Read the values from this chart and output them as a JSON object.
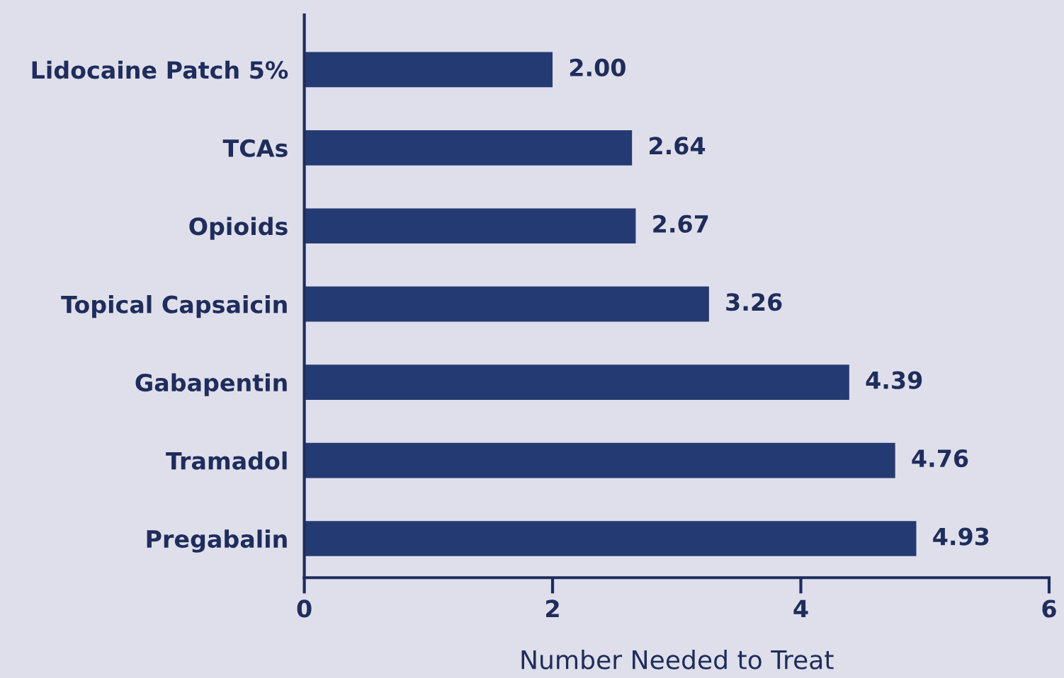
{
  "chart_data": {
    "type": "bar",
    "orientation": "horizontal",
    "xlabel": "Number Needed to Treat",
    "categories": [
      "Lidocaine Patch 5%",
      "TCAs",
      "Opioids",
      "Topical Capsaicin",
      "Gabapentin",
      "Tramadol",
      "Pregabalin"
    ],
    "values": [
      2.0,
      2.64,
      2.67,
      3.26,
      4.39,
      4.76,
      4.93
    ],
    "value_labels": [
      "2.00",
      "2.64",
      "2.67",
      "3.26",
      "4.39",
      "4.76",
      "4.93"
    ],
    "color": "#243a73",
    "xlim": [
      0,
      6
    ],
    "xticks": [
      0,
      2,
      4,
      6
    ],
    "grid": false,
    "legend": false
  }
}
